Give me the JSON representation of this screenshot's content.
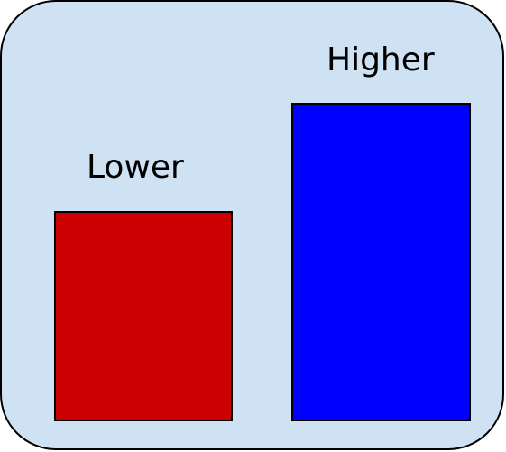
{
  "diagram": {
    "background_color": "#cfe2f3",
    "left_bar": {
      "label": "Lower",
      "color": "#cc0000"
    },
    "right_bar": {
      "label": "Higher",
      "color": "#0000ff"
    }
  }
}
